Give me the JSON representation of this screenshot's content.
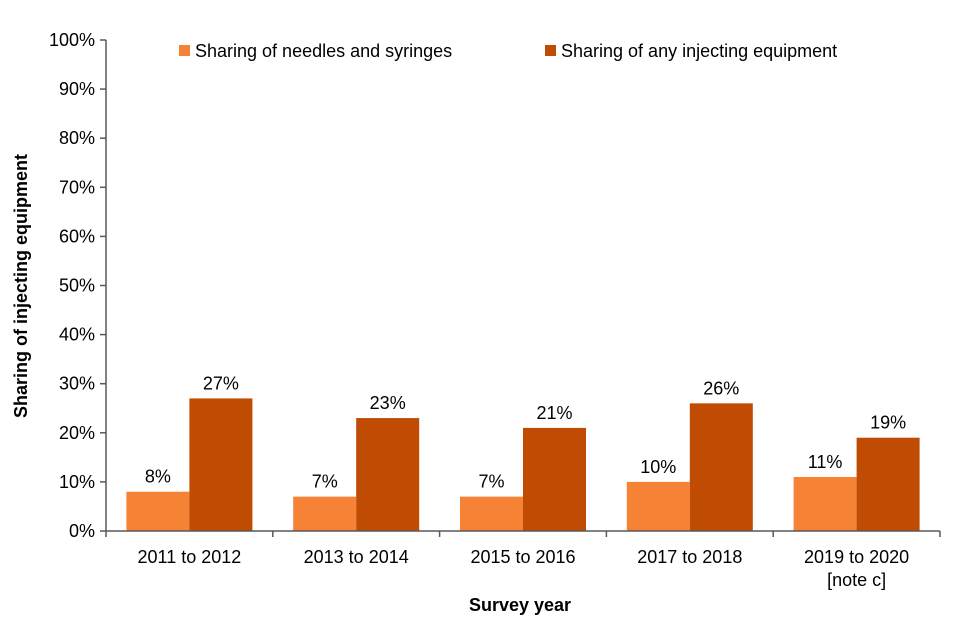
{
  "chart_data": {
    "type": "bar",
    "title": "",
    "xlabel": "Survey year",
    "ylabel": "Sharing of injecting equipment",
    "ylim": [
      0,
      100
    ],
    "yticks": [
      "0%",
      "10%",
      "20%",
      "30%",
      "40%",
      "50%",
      "60%",
      "70%",
      "80%",
      "90%",
      "100%"
    ],
    "categories": [
      [
        "2011 to 2012"
      ],
      [
        "2013 to 2014"
      ],
      [
        "2015 to 2016"
      ],
      [
        "2017 to 2018"
      ],
      [
        "2019 to 2020",
        "[note c]"
      ]
    ],
    "series": [
      {
        "name": "Sharing of needles and syringes",
        "color": "#F58235",
        "values": [
          8,
          7,
          7,
          10,
          11
        ],
        "labels": [
          "8%",
          "7%",
          "7%",
          "10%",
          "11%"
        ]
      },
      {
        "name": "Sharing of any injecting equipment",
        "color": "#C04B02",
        "values": [
          27,
          23,
          21,
          26,
          19
        ],
        "labels": [
          "27%",
          "23%",
          "21%",
          "26%",
          "19%"
        ]
      }
    ],
    "legend_position": "top-right",
    "grid": false
  }
}
